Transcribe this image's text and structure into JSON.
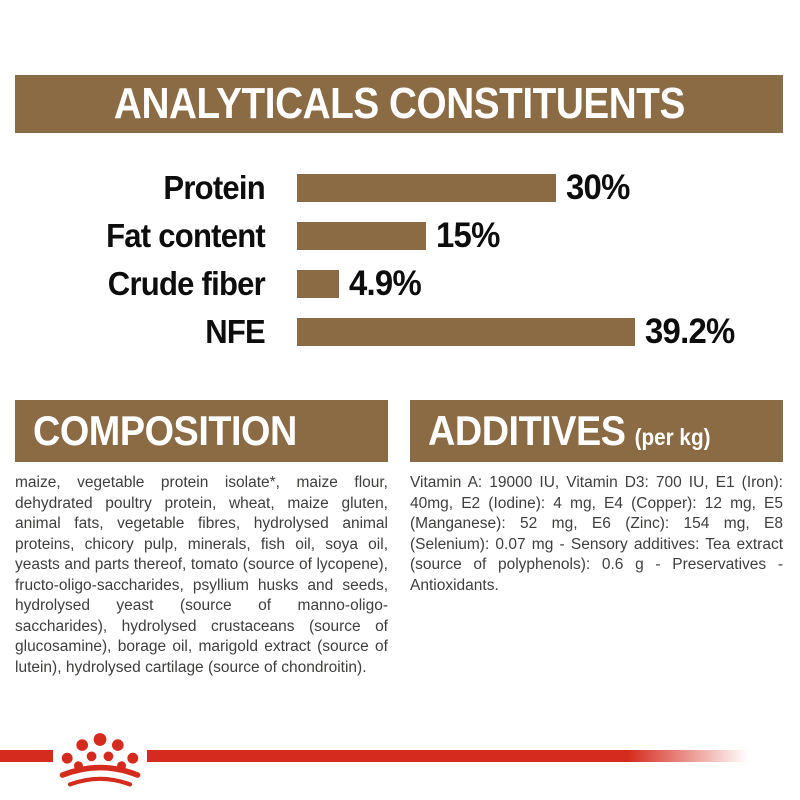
{
  "page": {
    "background_color": "#FFFFFF",
    "brand_brown": "#8A6B44",
    "brand_red": "#D52B1E",
    "body_text_color": "#3E3E3D"
  },
  "header": {
    "title": "ANALYTICALS CONSTITUENTS"
  },
  "chart_data": {
    "type": "bar",
    "orientation": "horizontal",
    "title": "ANALYTICALS CONSTITUENTS",
    "categories": [
      "Protein",
      "Fat content",
      "Crude fiber",
      "NFE"
    ],
    "values": [
      30,
      15,
      4.9,
      39.2
    ],
    "value_labels": [
      "30%",
      "15%",
      "4.9%",
      "39.2%"
    ],
    "unit": "%",
    "xlim": [
      0,
      40
    ],
    "bar_color": "#8A6B44",
    "grid": false,
    "legend": false
  },
  "composition": {
    "heading": "COMPOSITION",
    "body": "maize, vegetable protein isolate*, maize flour, dehydrated poultry protein, wheat, maize gluten, animal fats, vegetable fibres, hydrolysed animal proteins, chicory pulp, minerals, fish oil, soya oil, yeasts and parts thereof, tomato (source of lycopene), fructo-oligo-saccharides, psyllium husks and seeds, hydrolysed yeast (source of manno-oligo-saccharides), hydrolysed crustaceans (source of glucosamine), borage oil, marigold extract (source of lutein), hydrolysed cartilage (source of chondroitin)."
  },
  "additives": {
    "heading": "ADDITIVES",
    "heading_suffix": "(per kg)",
    "body": "Vitamin A: 19000 IU, Vitamin D3: 700 IU, E1 (Iron): 40mg, E2 (Iodine): 4 mg, E4 (Copper): 12 mg, E5 (Manganese): 52 mg, E6 (Zinc): 154 mg, E8 (Selenium): 0.07 mg - Sensory additives: Tea extract (source of polyphenols): 0.6 g - Preservatives - Antioxidants."
  },
  "footer": {
    "brand_logo_icon": "royal-canin-crown-icon"
  }
}
